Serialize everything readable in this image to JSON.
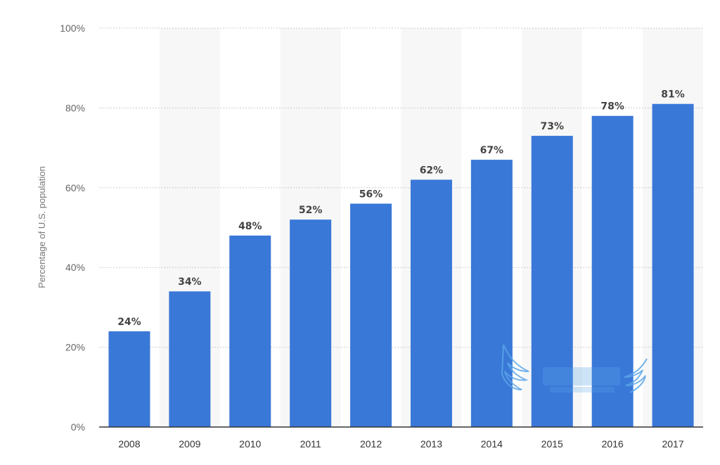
{
  "chart_data": {
    "type": "bar",
    "categories": [
      "2008",
      "2009",
      "2010",
      "2011",
      "2012",
      "2013",
      "2014",
      "2015",
      "2016",
      "2017"
    ],
    "values": [
      24,
      34,
      48,
      52,
      56,
      62,
      67,
      73,
      78,
      81
    ],
    "data_labels": [
      "24%",
      "34%",
      "48%",
      "52%",
      "56%",
      "62%",
      "67%",
      "73%",
      "78%",
      "81%"
    ],
    "title": "",
    "xlabel": "",
    "ylabel": "Percentage of U.S. population",
    "ylim": [
      0,
      100
    ],
    "yticks": [
      0,
      20,
      40,
      60,
      80,
      100
    ],
    "ytick_labels": [
      "0%",
      "20%",
      "40%",
      "60%",
      "80%",
      "100%"
    ],
    "grid": "horizontal dotted",
    "alternating_column_shading": true,
    "bar_color": "#3a78d8",
    "shading_color": "#f7f7f7",
    "grid_color": "#cccccc",
    "watermark_logo": "winged logo"
  }
}
